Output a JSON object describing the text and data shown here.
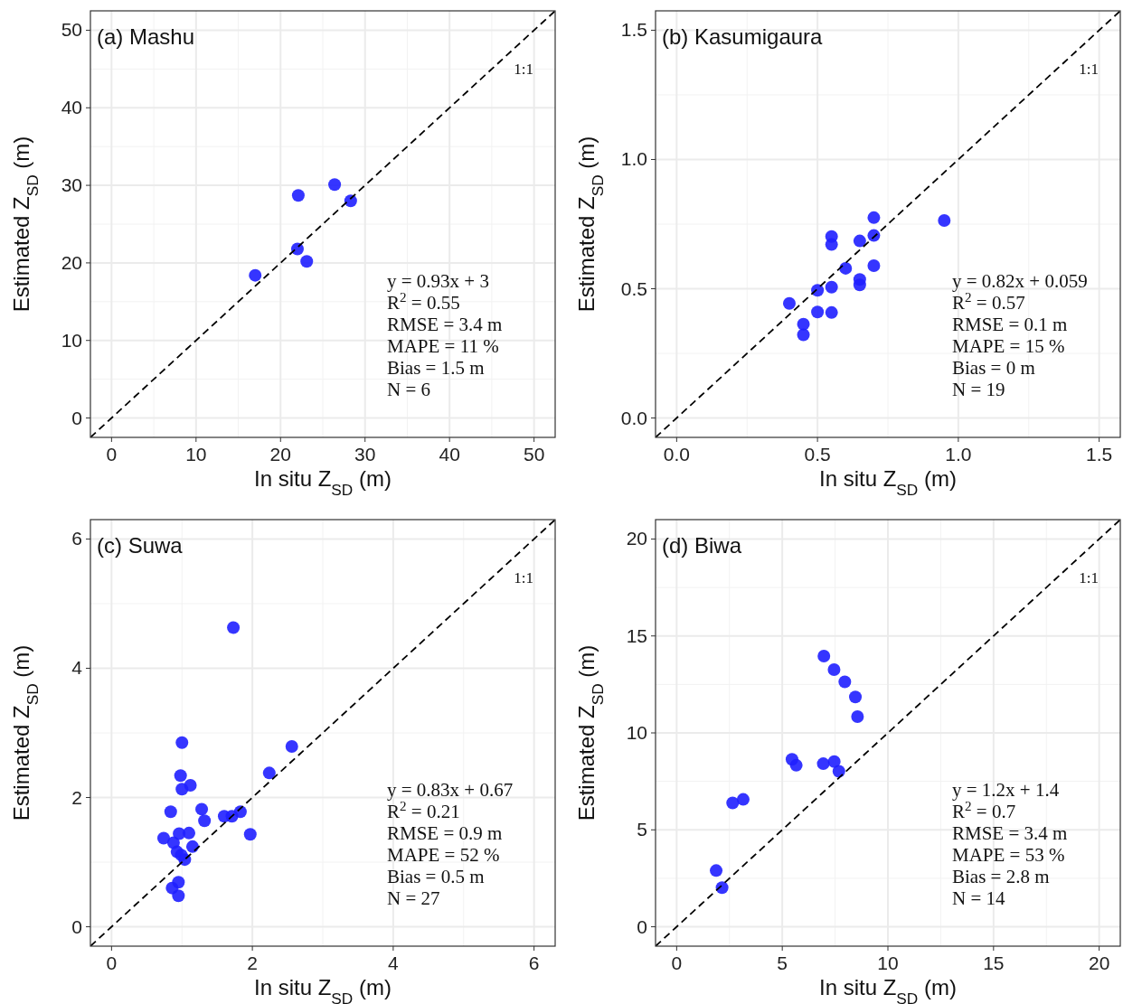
{
  "chart_data": [
    {
      "type": "scatter",
      "title": "(a) Mashu",
      "xlabel": "In situ Z$_{SD}$ (m)",
      "ylabel": "Estimated Z$_{SD}$ (m)",
      "xlim": [
        -2.5,
        52.5
      ],
      "ylim": [
        -2.5,
        52.5
      ],
      "xticks": [
        0,
        10,
        20,
        30,
        40,
        50
      ],
      "yticks": [
        0,
        10,
        20,
        30,
        40,
        50
      ],
      "grid": true,
      "annotations": [
        "1:1",
        "y = 0.93x + 3",
        "R$^{2}$ = 0.55",
        "RMSE = 3.4 m",
        "MAPE = 11 %",
        "Bias = 1.5 m",
        "N = 6"
      ],
      "series": [
        {
          "color": "#1f1fff",
          "marker": "circle",
          "x": [
            17,
            22,
            22.1,
            23.1,
            26.4,
            28.3
          ],
          "values": [
            18.4,
            21.8,
            28.7,
            20.2,
            30.1,
            28
          ]
        },
        {
          "type": "line",
          "color": "#000000",
          "line_style": "dashed",
          "x": [
            -2.5,
            52.5
          ],
          "values": [
            -2.5,
            52.5
          ]
        }
      ]
    },
    {
      "type": "scatter",
      "title": "(b) Kasumigaura",
      "xlabel": "In situ Z$_{SD}$ (m)",
      "ylabel": "Estimated Z$_{SD}$ (m)",
      "xlim": [
        -0.075,
        1.575
      ],
      "ylim": [
        -0.075,
        1.575
      ],
      "xticks": [
        {
          "value": 0,
          "label": "0.0"
        },
        0.5,
        {
          "value": 1,
          "label": "1.0"
        },
        1.5
      ],
      "yticks": [
        {
          "value": 0,
          "label": "0.0"
        },
        0.5,
        {
          "value": 1,
          "label": "1.0"
        },
        1.5
      ],
      "grid": true,
      "annotations": [
        "1:1",
        "y = 0.82x + 0.059",
        "R$^{2}$ = 0.57",
        "RMSE = 0.1 m",
        "MAPE = 15 %",
        "Bias = 0 m",
        "N = 19"
      ],
      "series": [
        {
          "color": "#1f1fff",
          "marker": "circle",
          "x": [
            0.7,
            0.95,
            0.55,
            0.55,
            0.65,
            0.7,
            0.6,
            0.7,
            0.65,
            0.65,
            null,
            0.55,
            0.5,
            0.4,
            0.5,
            null,
            0.55,
            0.45,
            0.45
          ],
          "values": [
            0.775,
            0.764,
            0.702,
            0.671,
            0.685,
            0.706,
            0.579,
            0.589,
            0.536,
            0.515,
            null,
            0.506,
            0.494,
            0.443,
            0.41,
            null,
            0.408,
            0.363,
            0.322
          ]
        },
        {
          "type": "line",
          "color": "#000000",
          "line_style": "dashed",
          "x": [
            -0.075,
            1.575
          ],
          "values": [
            -0.075,
            1.575
          ]
        }
      ]
    },
    {
      "type": "scatter",
      "title": "(c) Suwa",
      "xlabel": "In situ Z$_{SD}$ (m)",
      "ylabel": "Estimated Z$_{SD}$ (m)",
      "xlim": [
        -0.3,
        6.3
      ],
      "ylim": [
        -0.3,
        6.3
      ],
      "xticks": [
        0,
        2,
        4,
        6
      ],
      "yticks": [
        0,
        2,
        4,
        6
      ],
      "grid": true,
      "annotations": [
        "1:1",
        "y = 0.83x + 0.67",
        "R$^{2}$ = 0.21",
        "RMSE = 0.9 m",
        "MAPE = 52 %",
        "Bias = 0.5 m",
        "N = 27"
      ],
      "series": [
        {
          "color": "#1f1fff",
          "marker": "circle",
          "x": [
            1.73,
            1.0,
            2.56,
            2.24,
            0.98,
            1.12,
            1.0,
            null,
            0.84,
            1.28,
            1.32,
            1.6,
            1.71,
            1.83,
            1.97,
            0.74,
            0.88,
            0.96,
            1.1,
            null,
            1.15,
            0.93,
            0.99,
            1.04,
            0.95,
            0.86,
            0.95
          ],
          "values": [
            4.63,
            2.85,
            2.79,
            2.38,
            2.34,
            2.19,
            2.13,
            null,
            1.78,
            1.82,
            1.64,
            1.71,
            1.71,
            1.78,
            1.43,
            1.37,
            1.3,
            1.44,
            1.45,
            null,
            1.24,
            1.16,
            1.11,
            1.04,
            0.69,
            0.6,
            0.48
          ]
        },
        {
          "type": "line",
          "color": "#000000",
          "line_style": "dashed",
          "x": [
            -0.3,
            6.3
          ],
          "values": [
            -0.3,
            6.3
          ]
        }
      ]
    },
    {
      "type": "scatter",
      "title": "(d) Biwa",
      "xlabel": "In situ Z$_{SD}$ (m)",
      "ylabel": "Estimated Z$_{SD}$ (m)",
      "xlim": [
        -1,
        21
      ],
      "ylim": [
        -1,
        21
      ],
      "xticks": [
        0,
        5,
        10,
        15,
        20
      ],
      "yticks": [
        0,
        5,
        10,
        15,
        20
      ],
      "grid": true,
      "annotations": [
        "1:1",
        "y = 1.2x + 1.4",
        "R$^{2}$ = 0.7",
        "RMSE = 3.4 m",
        "MAPE = 53 %",
        "Bias = 2.8 m",
        "N = 14"
      ],
      "series": [
        {
          "color": "#1f1fff",
          "marker": "circle",
          "x": [
            6.97,
            7.45,
            7.96,
            8.46,
            8.56,
            5.46,
            5.66,
            6.94,
            7.46,
            7.68,
            2.65,
            3.15,
            1.87,
            2.15
          ],
          "values": [
            13.96,
            13.26,
            12.63,
            11.85,
            10.84,
            8.64,
            8.33,
            8.41,
            8.52,
            8.02,
            6.39,
            6.57,
            2.9,
            2.02
          ]
        },
        {
          "type": "line",
          "color": "#000000",
          "line_style": "dashed",
          "x": [
            -1,
            21
          ],
          "values": [
            -1,
            21
          ]
        }
      ]
    }
  ]
}
